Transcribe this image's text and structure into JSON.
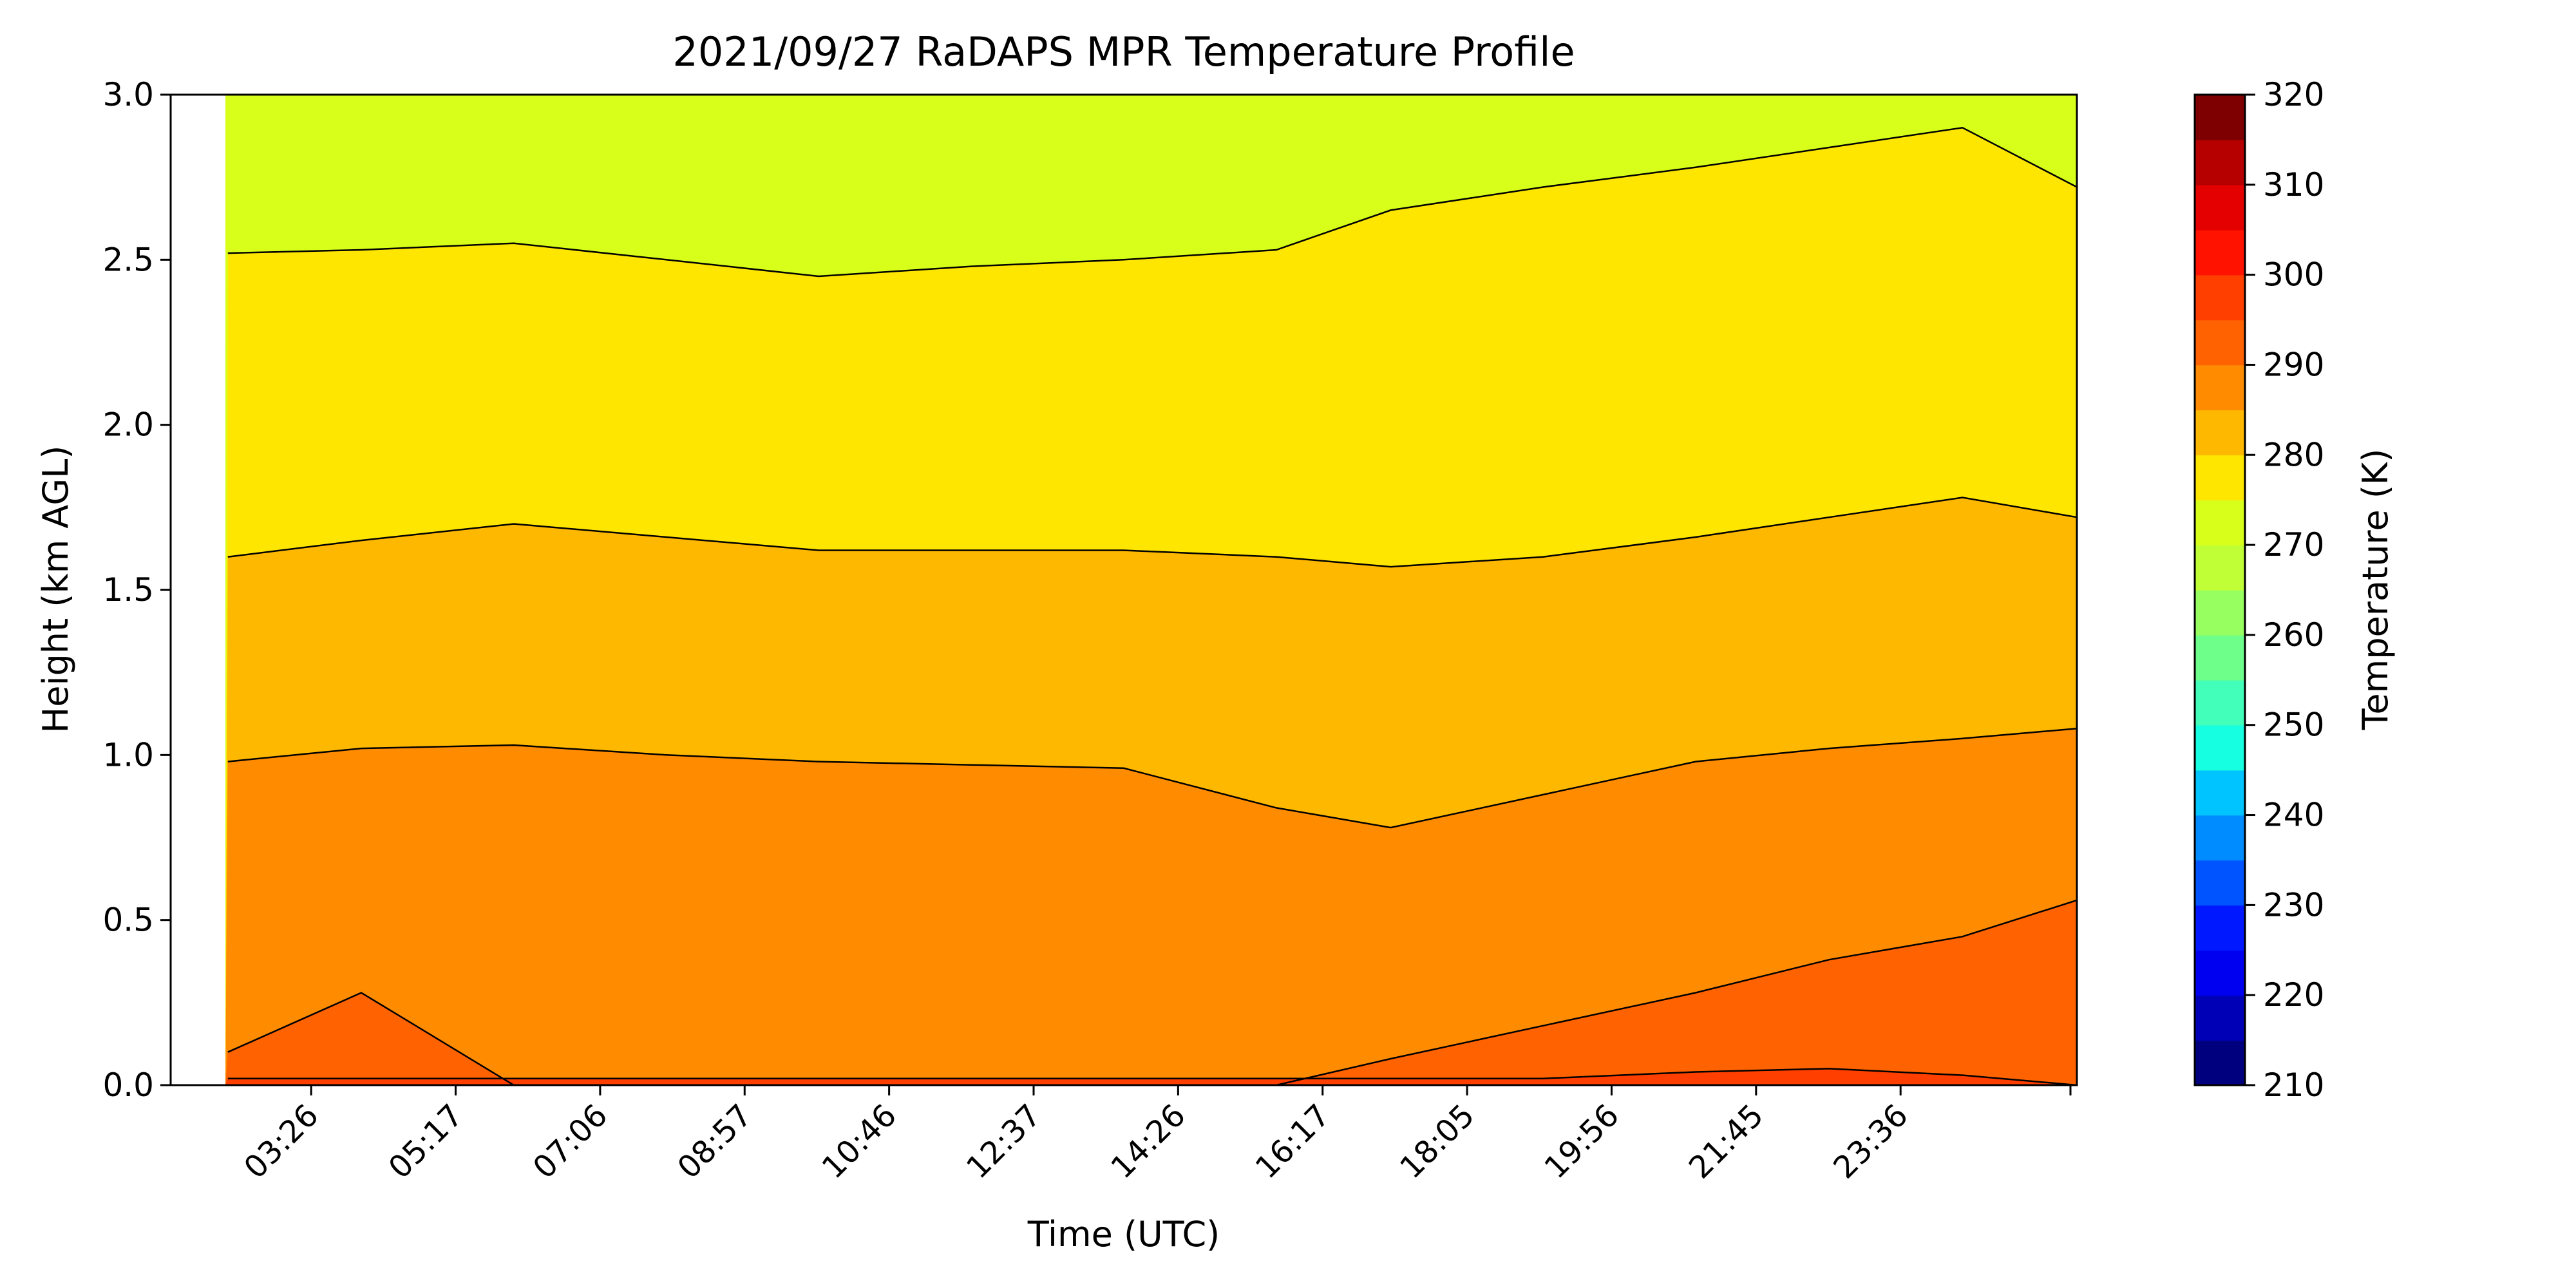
{
  "chart_data": {
    "type": "heatmap",
    "title": "2021/09/27 RaDAPS MPR Temperature Profile",
    "xlabel": "Time (UTC)",
    "ylabel": "Height (km AGL)",
    "colorbar_label": "Temperature (K)",
    "x_tick_labels": [
      "03:26",
      "05:17",
      "07:06",
      "08:57",
      "10:46",
      "12:37",
      "14:26",
      "16:17",
      "18:05",
      "19:56",
      "21:45",
      "23:36"
    ],
    "y_ticks": [
      0.0,
      0.5,
      1.0,
      1.5,
      2.0,
      2.5,
      3.0
    ],
    "y_tick_labels": [
      "0.0",
      "0.5",
      "1.0",
      "1.5",
      "2.0",
      "2.5",
      "3.0"
    ],
    "ylim": [
      0,
      3
    ],
    "colorbar_ticks": [
      210,
      220,
      230,
      240,
      250,
      260,
      270,
      280,
      290,
      300,
      310,
      320
    ],
    "colorbar_range": [
      210,
      320
    ],
    "colorbar_step": 5,
    "colorbar_colors": [
      "#00007f",
      "#0000b6",
      "#0000f1",
      "#0018ff",
      "#0054ff",
      "#008cff",
      "#00c4ff",
      "#16ffe1",
      "#42ffba",
      "#6dff8a",
      "#97ff60",
      "#c0ff36",
      "#d8ff1a",
      "#ffe600",
      "#ffb800",
      "#ff8c00",
      "#ff6200",
      "#ff3f00",
      "#ff1300",
      "#e40000",
      "#b60000",
      "#7f0000"
    ],
    "contour_levels": [
      {
        "temperature_K": 305,
        "height_km": [
          0.02,
          0.02,
          0.02,
          0.02,
          0.02,
          0.02,
          0.02,
          0.02,
          0.02,
          0.02,
          0.04,
          0.05,
          0.03,
          0.0
        ]
      },
      {
        "temperature_K": 300,
        "height_km": [
          0.1,
          0.28,
          0.0,
          0.0,
          0.0,
          0.0,
          0.0,
          0.0,
          0.08,
          0.18,
          0.28,
          0.38,
          0.45,
          0.56
        ]
      },
      {
        "temperature_K": 295,
        "height_km": [
          0.98,
          1.02,
          1.03,
          1.0,
          0.98,
          0.97,
          0.96,
          0.84,
          0.78,
          0.88,
          0.98,
          1.02,
          1.05,
          1.08
        ]
      },
      {
        "temperature_K": 290,
        "height_km": [
          1.6,
          1.65,
          1.7,
          1.66,
          1.62,
          1.62,
          1.62,
          1.6,
          1.57,
          1.6,
          1.66,
          1.72,
          1.78,
          1.72
        ]
      },
      {
        "temperature_K": 285,
        "height_km": [
          2.52,
          2.53,
          2.55,
          2.5,
          2.45,
          2.48,
          2.5,
          2.53,
          2.65,
          2.72,
          2.78,
          2.84,
          2.9,
          2.72
        ]
      }
    ],
    "contour_x_fraction": [
      0.03,
      0.1,
      0.18,
      0.26,
      0.34,
      0.42,
      0.5,
      0.58,
      0.64,
      0.72,
      0.8,
      0.87,
      0.94,
      1.0
    ],
    "grid": false
  }
}
